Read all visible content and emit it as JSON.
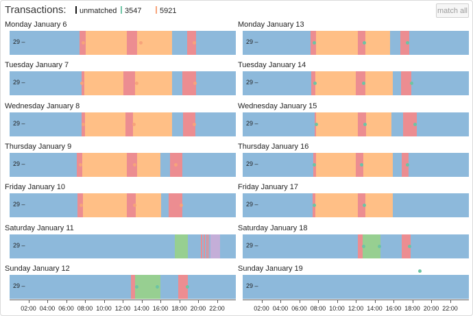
{
  "header": {
    "title": "Transactions:",
    "legend": [
      {
        "label": "unmatched",
        "color": "#111111"
      },
      {
        "label": "3547",
        "color": "#6cc4a4"
      },
      {
        "label": "5921",
        "color": "#f7a37a"
      }
    ],
    "match_all_label": "match all"
  },
  "colors": {
    "base": "#8db9db",
    "orange": "#ffbf86",
    "red": "#ec8d91",
    "green": "#97cf91",
    "purple": "#c4aed8",
    "dot_orange": "#f7a37a",
    "dot_teal": "#6cc4a4"
  },
  "row_tick_label": "29 –",
  "axis": {
    "labels": [
      "02:00",
      "04:00",
      "06:00",
      "08:00",
      "10:00",
      "12:00",
      "14:00",
      "16:00",
      "18:00",
      "20:00",
      "22:00"
    ],
    "hours": [
      2,
      4,
      6,
      8,
      10,
      12,
      14,
      16,
      18,
      20,
      22
    ]
  },
  "days": [
    {
      "label": "Monday January 6",
      "col": 0,
      "row": 0,
      "segments": [
        [
          "red",
          7.4,
          8.1
        ],
        [
          "orange",
          8.1,
          12.4
        ],
        [
          "red",
          12.4,
          13.5
        ],
        [
          "orange",
          13.5,
          17.2
        ],
        [
          "red",
          18.8,
          19.8
        ]
      ],
      "dots": [
        [
          "orange",
          7.8
        ],
        [
          "orange",
          13.9
        ],
        [
          "orange",
          19.6
        ]
      ]
    },
    {
      "label": "Tuesday January 7",
      "col": 0,
      "row": 1,
      "segments": [
        [
          "red",
          7.6,
          7.9
        ],
        [
          "orange",
          7.9,
          12.1
        ],
        [
          "red",
          12.1,
          13.3
        ],
        [
          "orange",
          13.3,
          17.2
        ],
        [
          "red",
          18.3,
          19.8
        ]
      ],
      "dots": [
        [
          "orange",
          7.7
        ],
        [
          "orange",
          13.5
        ],
        [
          "orange",
          19.7
        ]
      ]
    },
    {
      "label": "Wednesday January 8",
      "col": 0,
      "row": 2,
      "segments": [
        [
          "red",
          7.6,
          8.0
        ],
        [
          "orange",
          8.0,
          12.3
        ],
        [
          "red",
          12.3,
          13.1
        ],
        [
          "orange",
          13.1,
          17.2
        ],
        [
          "red",
          18.4,
          19.7
        ]
      ],
      "dots": [
        [
          "orange",
          7.8
        ],
        [
          "orange",
          13.2
        ],
        [
          "orange",
          19.6
        ]
      ]
    },
    {
      "label": "Thursday January 9",
      "col": 0,
      "row": 3,
      "segments": [
        [
          "red",
          7.1,
          7.7
        ],
        [
          "orange",
          7.7,
          12.4
        ],
        [
          "red",
          12.4,
          13.5
        ],
        [
          "orange",
          13.5,
          16.0
        ],
        [
          "red",
          17.0,
          18.3
        ]
      ],
      "dots": [
        [
          "orange",
          7.5
        ],
        [
          "orange",
          13.3
        ],
        [
          "orange",
          17.6
        ]
      ]
    },
    {
      "label": "Friday January 10",
      "col": 0,
      "row": 4,
      "segments": [
        [
          "red",
          7.2,
          7.8
        ],
        [
          "orange",
          7.8,
          12.4
        ],
        [
          "red",
          12.4,
          13.4
        ],
        [
          "orange",
          13.4,
          16.1
        ],
        [
          "red",
          16.9,
          18.3
        ]
      ],
      "dots": [
        [
          "orange",
          7.6
        ],
        [
          "orange",
          13.3
        ],
        [
          "orange",
          18.2
        ]
      ]
    },
    {
      "label": "Saturday January 11",
      "col": 0,
      "row": 5,
      "segments": [
        [
          "green",
          17.5,
          18.9
        ],
        [
          "red",
          20.3,
          20.4
        ],
        [
          "red",
          20.6,
          20.7
        ],
        [
          "red",
          20.9,
          21.0
        ],
        [
          "red",
          21.1,
          21.2
        ],
        [
          "purple",
          21.3,
          22.0
        ],
        [
          "purple",
          22.0,
          22.3
        ]
      ],
      "dots": []
    },
    {
      "label": "Sunday January 12",
      "col": 0,
      "row": 6,
      "segments": [
        [
          "red",
          12.9,
          13.3
        ],
        [
          "green",
          13.3,
          16.0
        ],
        [
          "red",
          17.9,
          18.9
        ]
      ],
      "dots": [
        [
          "teal",
          13.5
        ],
        [
          "teal",
          15.7
        ],
        [
          "teal",
          18.9
        ]
      ]
    },
    {
      "label": "Monday January 13",
      "col": 1,
      "row": 0,
      "segments": [
        [
          "red",
          7.2,
          7.8
        ],
        [
          "orange",
          7.8,
          12.2
        ],
        [
          "red",
          12.2,
          13.0
        ],
        [
          "orange",
          13.0,
          15.6
        ],
        [
          "red",
          16.7,
          17.7
        ]
      ],
      "dots": [
        [
          "teal",
          7.6
        ],
        [
          "teal",
          12.9
        ],
        [
          "teal",
          17.5
        ]
      ]
    },
    {
      "label": "Tuesday January 14",
      "col": 1,
      "row": 1,
      "segments": [
        [
          "red",
          7.3,
          7.7
        ],
        [
          "orange",
          7.7,
          12.0
        ],
        [
          "red",
          12.0,
          13.0
        ],
        [
          "orange",
          13.0,
          15.9
        ],
        [
          "red",
          16.8,
          17.9
        ]
      ],
      "dots": [
        [
          "teal",
          7.7
        ],
        [
          "teal",
          12.8
        ],
        [
          "teal",
          17.9
        ]
      ]
    },
    {
      "label": "Wednesday January 15",
      "col": 1,
      "row": 2,
      "segments": [
        [
          "red",
          7.6,
          7.8
        ],
        [
          "orange",
          7.8,
          12.2
        ],
        [
          "red",
          12.2,
          13.1
        ],
        [
          "orange",
          13.1,
          15.8
        ],
        [
          "red",
          17.0,
          18.5
        ]
      ],
      "dots": [
        [
          "teal",
          7.8
        ],
        [
          "teal",
          13.0
        ],
        [
          "teal",
          18.3
        ]
      ]
    },
    {
      "label": "Thursday January 16",
      "col": 1,
      "row": 3,
      "segments": [
        [
          "red",
          7.5,
          7.8
        ],
        [
          "orange",
          7.8,
          12.0
        ],
        [
          "red",
          12.0,
          12.8
        ],
        [
          "orange",
          12.8,
          15.9
        ],
        [
          "red",
          16.9,
          17.6
        ]
      ],
      "dots": [
        [
          "teal",
          7.6
        ],
        [
          "teal",
          12.6
        ],
        [
          "teal",
          17.5
        ]
      ]
    },
    {
      "label": "Friday January 17",
      "col": 1,
      "row": 4,
      "segments": [
        [
          "red",
          7.4,
          7.7
        ],
        [
          "orange",
          7.7,
          12.2
        ],
        [
          "red",
          12.2,
          13.0
        ],
        [
          "orange",
          13.0,
          15.9
        ]
      ],
      "dots": [
        [
          "teal",
          7.6
        ],
        [
          "teal",
          12.9
        ]
      ]
    },
    {
      "label": "Saturday January 18",
      "col": 1,
      "row": 5,
      "segments": [
        [
          "red",
          12.2,
          12.7
        ],
        [
          "green",
          12.7,
          14.6
        ],
        [
          "red",
          16.9,
          17.8
        ]
      ],
      "dots": [
        [
          "teal",
          12.8
        ],
        [
          "teal",
          14.5
        ],
        [
          "teal",
          17.7
        ]
      ]
    },
    {
      "label": "Sunday January 19",
      "col": 1,
      "row": 6,
      "segments": [],
      "dots": []
    }
  ]
}
